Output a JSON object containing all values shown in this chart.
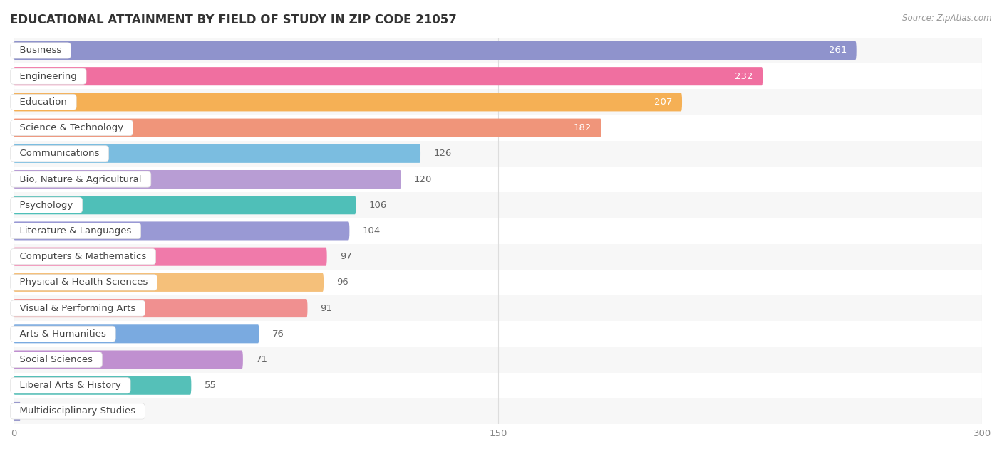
{
  "title": "EDUCATIONAL ATTAINMENT BY FIELD OF STUDY IN ZIP CODE 21057",
  "source": "Source: ZipAtlas.com",
  "categories": [
    "Business",
    "Engineering",
    "Education",
    "Science & Technology",
    "Communications",
    "Bio, Nature & Agricultural",
    "Psychology",
    "Literature & Languages",
    "Computers & Mathematics",
    "Physical & Health Sciences",
    "Visual & Performing Arts",
    "Arts & Humanities",
    "Social Sciences",
    "Liberal Arts & History",
    "Multidisciplinary Studies"
  ],
  "values": [
    261,
    232,
    207,
    182,
    126,
    120,
    106,
    104,
    97,
    96,
    91,
    76,
    71,
    55,
    0
  ],
  "colors": [
    "#8f93cc",
    "#f06fa0",
    "#f5b055",
    "#f0957a",
    "#7bbde0",
    "#b89dd4",
    "#4fbfb8",
    "#9999d4",
    "#f07aaa",
    "#f5c07a",
    "#f09090",
    "#7aaae0",
    "#c090d0",
    "#55c0b8",
    "#9999cc"
  ],
  "xlim": [
    0,
    300
  ],
  "xticks": [
    0,
    150,
    300
  ],
  "bar_height": 0.72,
  "label_color_inside": "#ffffff",
  "label_color_outside": "#666666",
  "label_threshold": 150,
  "background_color": "#ffffff",
  "title_fontsize": 12,
  "source_fontsize": 8.5,
  "label_fontsize": 9.5,
  "tick_fontsize": 9.5,
  "category_fontsize": 9.5
}
